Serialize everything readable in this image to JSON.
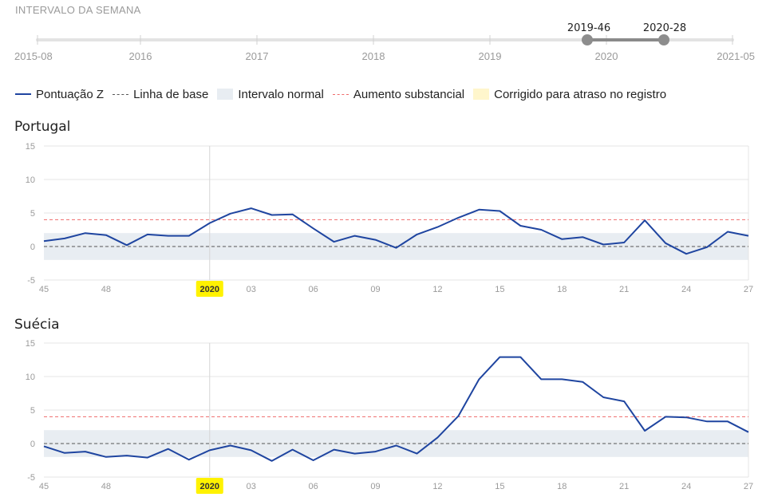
{
  "header": {
    "title": "INTERVALO DA SEMANA"
  },
  "slider": {
    "ticks": [
      "2015-08",
      "2016",
      "2017",
      "2018",
      "2019",
      "2020",
      "2021-05"
    ],
    "selection": {
      "start_label": "2019-46",
      "end_label": "2020-28"
    }
  },
  "legend": {
    "zscore": "Pontuação Z",
    "baseline": "Linha de base",
    "normal_range": "Intervalo normal",
    "substantial": "Aumento substancial",
    "corrected": "Corrigido para atraso no registro"
  },
  "colors": {
    "series": "#1f45a0",
    "baseline": "#555555",
    "threshold": "#ef6b6b",
    "normal_band": "#e8edf2",
    "corrected": "#fff6cc",
    "year_highlight": "#fff200"
  },
  "chart_data": [
    {
      "type": "line",
      "title": "Portugal",
      "x_ticks": [
        "45",
        "48",
        "2020",
        "03",
        "06",
        "09",
        "12",
        "15",
        "18",
        "21",
        "24",
        "27"
      ],
      "ylim": [
        -5,
        15
      ],
      "y_ticks": [
        -5,
        0,
        5,
        10,
        15
      ],
      "baseline": 0,
      "normal_range": [
        -2,
        2
      ],
      "substantial_increase": 4,
      "year_marker": "2020",
      "grid": true,
      "x": [
        "2019-45",
        "2019-46",
        "2019-47",
        "2019-48",
        "2019-49",
        "2019-50",
        "2019-51",
        "2019-52",
        "2020-01",
        "2020-02",
        "2020-03",
        "2020-04",
        "2020-05",
        "2020-06",
        "2020-07",
        "2020-08",
        "2020-09",
        "2020-10",
        "2020-11",
        "2020-12",
        "2020-13",
        "2020-14",
        "2020-15",
        "2020-16",
        "2020-17",
        "2020-18",
        "2020-19",
        "2020-20",
        "2020-21",
        "2020-22",
        "2020-23",
        "2020-24",
        "2020-25",
        "2020-26",
        "2020-27"
      ],
      "series": [
        {
          "values": [
            0.8,
            1.2,
            2.0,
            1.7,
            0.2,
            1.8,
            1.6,
            1.6,
            3.5,
            4.9,
            5.7,
            4.7,
            4.8,
            2.7,
            0.7,
            1.6,
            1.0,
            -0.2,
            1.8,
            2.9,
            4.3,
            5.5,
            5.3,
            3.1,
            2.5,
            1.1,
            1.4,
            0.3,
            0.6,
            3.9,
            0.5,
            -1.1,
            -0.1,
            2.2,
            1.6
          ]
        }
      ]
    },
    {
      "type": "line",
      "title": "Suécia",
      "x_ticks": [
        "45",
        "48",
        "2020",
        "03",
        "06",
        "09",
        "12",
        "15",
        "18",
        "21",
        "24",
        "27"
      ],
      "ylim": [
        -5,
        15
      ],
      "y_ticks": [
        -5,
        0,
        5,
        10,
        15
      ],
      "baseline": 0,
      "normal_range": [
        -2,
        2
      ],
      "substantial_increase": 4,
      "year_marker": "2020",
      "grid": true,
      "x": [
        "2019-45",
        "2019-46",
        "2019-47",
        "2019-48",
        "2019-49",
        "2019-50",
        "2019-51",
        "2019-52",
        "2020-01",
        "2020-02",
        "2020-03",
        "2020-04",
        "2020-05",
        "2020-06",
        "2020-07",
        "2020-08",
        "2020-09",
        "2020-10",
        "2020-11",
        "2020-12",
        "2020-13",
        "2020-14",
        "2020-15",
        "2020-16",
        "2020-17",
        "2020-18",
        "2020-19",
        "2020-20",
        "2020-21",
        "2020-22",
        "2020-23",
        "2020-24",
        "2020-25",
        "2020-26",
        "2020-27"
      ],
      "series": [
        {
          "values": [
            -0.4,
            -1.4,
            -1.2,
            -2.0,
            -1.8,
            -2.1,
            -0.8,
            -2.4,
            -1.0,
            -0.3,
            -1.0,
            -2.6,
            -0.9,
            -2.5,
            -0.9,
            -1.5,
            -1.2,
            -0.3,
            -1.5,
            0.9,
            4.1,
            9.6,
            12.9,
            12.9,
            9.6,
            9.6,
            9.2,
            6.9,
            6.3,
            1.9,
            4.0,
            3.9,
            3.3,
            3.3,
            1.7
          ]
        }
      ]
    }
  ]
}
